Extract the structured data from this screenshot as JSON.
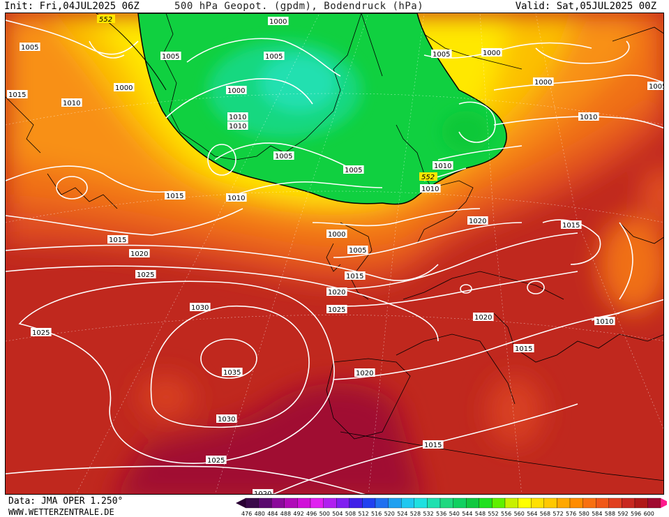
{
  "header": {
    "init": "Init: Fri,04JUL2025 06Z",
    "title": "500 hPa Geopot. (gpdm), Bodendruck (hPa)",
    "valid": "Valid: Sat,05JUL2025 00Z"
  },
  "footer": {
    "source": "Data: JMA OPER 1.250°",
    "site": "WWW.WETTERZENTRALE.DE"
  },
  "map": {
    "geopotential_line": "552",
    "isobars": [
      {
        "label": "1000"
      },
      {
        "label": "1005"
      },
      {
        "label": "1005"
      },
      {
        "label": "1005"
      },
      {
        "label": "1000"
      },
      {
        "label": "1015"
      },
      {
        "label": "1010"
      },
      {
        "label": "1000"
      },
      {
        "label": "1000"
      },
      {
        "label": "1005"
      },
      {
        "label": "1010"
      },
      {
        "label": "1010"
      },
      {
        "label": "1000"
      },
      {
        "label": "1005"
      },
      {
        "label": "1005"
      },
      {
        "label": "1010"
      },
      {
        "label": "1015"
      },
      {
        "label": "1010"
      },
      {
        "label": "1005"
      },
      {
        "label": "1010"
      },
      {
        "label": "1010"
      },
      {
        "label": "1020"
      },
      {
        "label": "1015"
      },
      {
        "label": "1000"
      },
      {
        "label": "1005"
      },
      {
        "label": "1015"
      },
      {
        "label": "1015"
      },
      {
        "label": "1020"
      },
      {
        "label": "1025"
      },
      {
        "label": "1020"
      },
      {
        "label": "1025"
      },
      {
        "label": "1030"
      },
      {
        "label": "1025"
      },
      {
        "label": "1035"
      },
      {
        "label": "1020"
      },
      {
        "label": "1020"
      },
      {
        "label": "1010"
      },
      {
        "label": "1015"
      },
      {
        "label": "1030"
      },
      {
        "label": "1025"
      },
      {
        "label": "1015"
      },
      {
        "label": "1020"
      }
    ]
  },
  "scale": {
    "ticks": [
      "476",
      "480",
      "484",
      "488",
      "492",
      "496",
      "500",
      "504",
      "508",
      "512",
      "516",
      "520",
      "524",
      "528",
      "532",
      "536",
      "540",
      "544",
      "548",
      "552",
      "556",
      "560",
      "564",
      "568",
      "572",
      "576",
      "580",
      "584",
      "588",
      "592",
      "596",
      "600"
    ],
    "colors": [
      "#3a0a4a",
      "#5a0a6e",
      "#8a0a9a",
      "#b00ab8",
      "#d010d8",
      "#e020f0",
      "#b020f0",
      "#8020f0",
      "#4020e8",
      "#2040f0",
      "#2070f0",
      "#20a0f0",
      "#20c8f0",
      "#20e0e0",
      "#20e0b0",
      "#20d880",
      "#10d060",
      "#10c840",
      "#20e020",
      "#60f000",
      "#c8f000",
      "#ffff00",
      "#ffe000",
      "#ffc800",
      "#ffa800",
      "#ff8c00",
      "#f87010",
      "#f05818",
      "#e04020",
      "#c82820",
      "#b01818",
      "#a00a30"
    ],
    "left_arrow_color": "#2a0033",
    "right_arrow_color": "#ff1a8c"
  }
}
